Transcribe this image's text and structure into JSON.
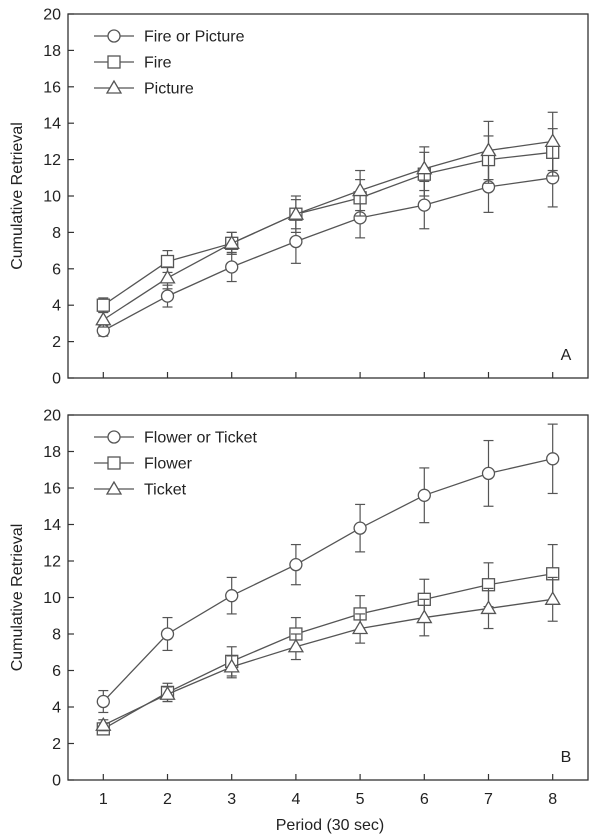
{
  "chart_data": [
    {
      "type": "line",
      "panel_label": "A",
      "xlabel": "",
      "ylabel": "Cumulative Retrieval",
      "ylim": [
        0,
        20
      ],
      "yticks": [
        0,
        2,
        4,
        6,
        8,
        10,
        12,
        14,
        16,
        18,
        20
      ],
      "x": [
        1,
        2,
        3,
        4,
        5,
        6,
        7,
        8
      ],
      "legend_position": "top-left",
      "grid": false,
      "series": [
        {
          "name": "Fire or Picture",
          "marker": "circle",
          "values": [
            2.6,
            4.5,
            6.1,
            7.5,
            8.8,
            9.5,
            10.5,
            11.0
          ],
          "errors": [
            0.3,
            0.6,
            0.8,
            1.2,
            1.1,
            1.3,
            1.4,
            1.6
          ]
        },
        {
          "name": "Fire",
          "marker": "square",
          "values": [
            4.0,
            6.4,
            7.4,
            9.0,
            9.9,
            11.2,
            12.0,
            12.4
          ],
          "errors": [
            0.4,
            0.6,
            0.6,
            0.8,
            1.0,
            1.2,
            1.3,
            1.3
          ]
        },
        {
          "name": "Picture",
          "marker": "triangle",
          "values": [
            3.2,
            5.5,
            7.4,
            9.0,
            10.3,
            11.5,
            12.5,
            13.0
          ],
          "errors": [
            0.4,
            0.6,
            0.6,
            1.0,
            1.1,
            1.2,
            1.6,
            1.6
          ]
        }
      ]
    },
    {
      "type": "line",
      "panel_label": "B",
      "xlabel": "Period (30 sec)",
      "ylabel": "Cumulative Retrieval",
      "ylim": [
        0,
        20
      ],
      "yticks": [
        0,
        2,
        4,
        6,
        8,
        10,
        12,
        14,
        16,
        18,
        20
      ],
      "x": [
        1,
        2,
        3,
        4,
        5,
        6,
        7,
        8
      ],
      "xticks": [
        "1",
        "2",
        "3",
        "4",
        "5",
        "6",
        "7",
        "8"
      ],
      "legend_position": "top-left",
      "grid": false,
      "series": [
        {
          "name": "Flower or Ticket",
          "marker": "circle",
          "values": [
            4.3,
            8.0,
            10.1,
            11.8,
            13.8,
            15.6,
            16.8,
            17.6
          ],
          "errors": [
            0.6,
            0.9,
            1.0,
            1.1,
            1.3,
            1.5,
            1.8,
            1.9
          ]
        },
        {
          "name": "Flower",
          "marker": "square",
          "values": [
            2.8,
            4.8,
            6.5,
            8.0,
            9.1,
            9.9,
            10.7,
            11.3
          ],
          "errors": [
            0.3,
            0.5,
            0.8,
            0.9,
            1.0,
            1.1,
            1.2,
            1.6
          ]
        },
        {
          "name": "Ticket",
          "marker": "triangle",
          "values": [
            3.0,
            4.7,
            6.2,
            7.3,
            8.3,
            8.9,
            9.4,
            9.9
          ],
          "errors": [
            0.3,
            0.4,
            0.6,
            0.7,
            0.8,
            1.0,
            1.1,
            1.2
          ]
        }
      ]
    }
  ]
}
